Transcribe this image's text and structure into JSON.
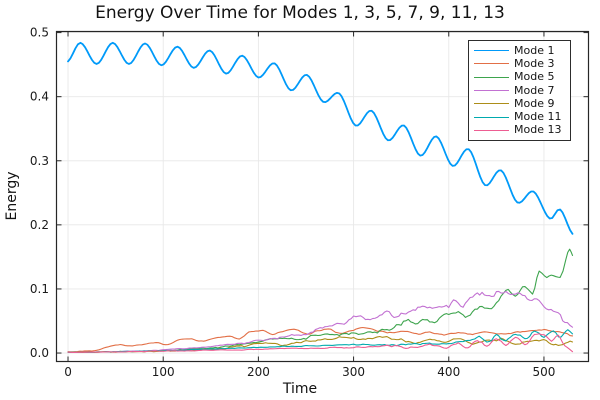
{
  "chart_data": {
    "type": "line",
    "title": "Energy Over Time for Modes 1, 3, 5, 7, 9, 11, 13",
    "xlabel": "Time",
    "ylabel": "Energy",
    "xlim": [
      -12.1,
      546.8
    ],
    "ylim": [
      -0.0132,
      0.5017
    ],
    "xticks": [
      0,
      100,
      200,
      300,
      400,
      500
    ],
    "yticks": [
      0.0,
      0.1,
      0.2,
      0.3,
      0.4,
      0.5
    ],
    "grid": true,
    "legend_position": "top-right",
    "frame_color": "#262626",
    "grid_color": "#e8e8e8",
    "tick_label_color": "#1a1a1a",
    "series": [
      {
        "name": "Mode 1",
        "color": "#009af9",
        "width": 1.8,
        "points": [
          [
            0,
            0.455
          ],
          [
            13,
            0.484
          ],
          [
            30,
            0.451
          ],
          [
            47,
            0.484
          ],
          [
            64,
            0.451
          ],
          [
            81,
            0.483
          ],
          [
            98,
            0.449
          ],
          [
            115,
            0.478
          ],
          [
            132,
            0.445
          ],
          [
            149,
            0.472
          ],
          [
            166,
            0.436
          ],
          [
            183,
            0.464
          ],
          [
            200,
            0.43
          ],
          [
            217,
            0.452
          ],
          [
            234,
            0.41
          ],
          [
            251,
            0.434
          ],
          [
            268,
            0.392
          ],
          [
            285,
            0.405
          ],
          [
            302,
            0.355
          ],
          [
            319,
            0.378
          ],
          [
            336,
            0.332
          ],
          [
            353,
            0.355
          ],
          [
            370,
            0.308
          ],
          [
            387,
            0.338
          ],
          [
            404,
            0.292
          ],
          [
            421,
            0.318
          ],
          [
            438,
            0.262
          ],
          [
            455,
            0.285
          ],
          [
            472,
            0.235
          ],
          [
            489,
            0.252
          ],
          [
            506,
            0.21
          ],
          [
            517,
            0.224
          ],
          [
            530,
            0.186
          ]
        ],
        "noise": []
      },
      {
        "name": "Mode 3",
        "color": "#e26f46",
        "width": 1.1,
        "points": [
          [
            0,
            0.002
          ],
          [
            15,
            0.003
          ],
          [
            30,
            0.004
          ],
          [
            40,
            0.009
          ],
          [
            55,
            0.013
          ],
          [
            65,
            0.011
          ],
          [
            80,
            0.014
          ],
          [
            95,
            0.016
          ],
          [
            105,
            0.013
          ],
          [
            115,
            0.02
          ],
          [
            130,
            0.022
          ],
          [
            140,
            0.018
          ],
          [
            155,
            0.024
          ],
          [
            170,
            0.026
          ],
          [
            180,
            0.022
          ],
          [
            190,
            0.032
          ],
          [
            205,
            0.035
          ],
          [
            215,
            0.029
          ],
          [
            228,
            0.035
          ],
          [
            242,
            0.036
          ],
          [
            252,
            0.029
          ],
          [
            262,
            0.035
          ],
          [
            276,
            0.037
          ],
          [
            286,
            0.03
          ],
          [
            300,
            0.036
          ],
          [
            312,
            0.039
          ],
          [
            325,
            0.035
          ],
          [
            338,
            0.032
          ],
          [
            352,
            0.034
          ],
          [
            366,
            0.03
          ],
          [
            380,
            0.032
          ],
          [
            395,
            0.029
          ],
          [
            410,
            0.031
          ],
          [
            425,
            0.03
          ],
          [
            440,
            0.033
          ],
          [
            455,
            0.029
          ],
          [
            470,
            0.032
          ],
          [
            485,
            0.035
          ],
          [
            500,
            0.036
          ],
          [
            512,
            0.033
          ],
          [
            522,
            0.032
          ],
          [
            530,
            0.027
          ]
        ],
        "noise": [
          [
            0,
            0.0005
          ],
          [
            200,
            0.0015
          ],
          [
            530,
            0.0015
          ]
        ]
      },
      {
        "name": "Mode 5",
        "color": "#3da44d",
        "width": 1.1,
        "points": [
          [
            0,
            0.001
          ],
          [
            50,
            0.002
          ],
          [
            100,
            0.004
          ],
          [
            150,
            0.008
          ],
          [
            175,
            0.012
          ],
          [
            200,
            0.017
          ],
          [
            220,
            0.023
          ],
          [
            240,
            0.021
          ],
          [
            260,
            0.027
          ],
          [
            280,
            0.029
          ],
          [
            300,
            0.031
          ],
          [
            320,
            0.033
          ],
          [
            340,
            0.038
          ],
          [
            355,
            0.05
          ],
          [
            365,
            0.045
          ],
          [
            375,
            0.054
          ],
          [
            385,
            0.048
          ],
          [
            395,
            0.059
          ],
          [
            410,
            0.064
          ],
          [
            420,
            0.057
          ],
          [
            430,
            0.071
          ],
          [
            440,
            0.067
          ],
          [
            450,
            0.079
          ],
          [
            460,
            0.098
          ],
          [
            470,
            0.089
          ],
          [
            480,
            0.106
          ],
          [
            488,
            0.092
          ],
          [
            495,
            0.128
          ],
          [
            503,
            0.116
          ],
          [
            510,
            0.124
          ],
          [
            517,
            0.119
          ],
          [
            523,
            0.147
          ],
          [
            527,
            0.164
          ],
          [
            530,
            0.154
          ]
        ],
        "noise": [
          [
            0,
            0.0005
          ],
          [
            200,
            0.002
          ],
          [
            350,
            0.004
          ],
          [
            530,
            0.005
          ]
        ]
      },
      {
        "name": "Mode 7",
        "color": "#c271d2",
        "width": 1.1,
        "points": [
          [
            0,
            0.001
          ],
          [
            50,
            0.002
          ],
          [
            100,
            0.005
          ],
          [
            150,
            0.01
          ],
          [
            175,
            0.014
          ],
          [
            200,
            0.019
          ],
          [
            225,
            0.025
          ],
          [
            250,
            0.031
          ],
          [
            270,
            0.039
          ],
          [
            290,
            0.047
          ],
          [
            305,
            0.057
          ],
          [
            320,
            0.054
          ],
          [
            335,
            0.062
          ],
          [
            350,
            0.058
          ],
          [
            365,
            0.068
          ],
          [
            380,
            0.072
          ],
          [
            395,
            0.07
          ],
          [
            405,
            0.08
          ],
          [
            415,
            0.075
          ],
          [
            425,
            0.088
          ],
          [
            435,
            0.094
          ],
          [
            445,
            0.087
          ],
          [
            455,
            0.098
          ],
          [
            465,
            0.092
          ],
          [
            475,
            0.096
          ],
          [
            485,
            0.085
          ],
          [
            495,
            0.081
          ],
          [
            505,
            0.069
          ],
          [
            515,
            0.061
          ],
          [
            522,
            0.049
          ],
          [
            530,
            0.044
          ]
        ],
        "noise": [
          [
            0,
            0.0005
          ],
          [
            150,
            0.001
          ],
          [
            250,
            0.003
          ],
          [
            320,
            0.006
          ],
          [
            420,
            0.007
          ],
          [
            530,
            0.006
          ]
        ]
      },
      {
        "name": "Mode 9",
        "color": "#ac8d18",
        "width": 1.1,
        "points": [
          [
            0,
            0.001
          ],
          [
            60,
            0.002
          ],
          [
            120,
            0.004
          ],
          [
            160,
            0.007
          ],
          [
            190,
            0.012
          ],
          [
            210,
            0.016
          ],
          [
            230,
            0.013
          ],
          [
            250,
            0.019
          ],
          [
            270,
            0.021
          ],
          [
            290,
            0.025
          ],
          [
            310,
            0.021
          ],
          [
            330,
            0.025
          ],
          [
            350,
            0.021
          ],
          [
            365,
            0.015
          ],
          [
            380,
            0.021
          ],
          [
            395,
            0.017
          ],
          [
            410,
            0.023
          ],
          [
            425,
            0.015
          ],
          [
            440,
            0.019
          ],
          [
            455,
            0.021
          ],
          [
            470,
            0.015
          ],
          [
            485,
            0.019
          ],
          [
            500,
            0.02
          ],
          [
            510,
            0.012
          ],
          [
            520,
            0.013
          ],
          [
            530,
            0.019
          ]
        ],
        "noise": [
          [
            0,
            0.0005
          ],
          [
            180,
            0.002
          ],
          [
            530,
            0.003
          ]
        ]
      },
      {
        "name": "Mode 11",
        "color": "#00aaae",
        "width": 1.1,
        "points": [
          [
            0,
            0.001
          ],
          [
            80,
            0.003
          ],
          [
            150,
            0.006
          ],
          [
            200,
            0.009
          ],
          [
            250,
            0.011
          ],
          [
            300,
            0.013
          ],
          [
            350,
            0.013
          ],
          [
            400,
            0.015
          ],
          [
            420,
            0.019
          ],
          [
            432,
            0.025
          ],
          [
            440,
            0.017
          ],
          [
            450,
            0.027
          ],
          [
            460,
            0.019
          ],
          [
            470,
            0.029
          ],
          [
            480,
            0.023
          ],
          [
            490,
            0.033
          ],
          [
            500,
            0.027
          ],
          [
            510,
            0.033
          ],
          [
            518,
            0.025
          ],
          [
            525,
            0.035
          ],
          [
            530,
            0.029
          ]
        ],
        "noise": [
          [
            0,
            0.0003
          ],
          [
            300,
            0.001
          ],
          [
            420,
            0.003
          ],
          [
            530,
            0.003
          ]
        ]
      },
      {
        "name": "Mode 13",
        "color": "#ed5d92",
        "width": 1.1,
        "points": [
          [
            0,
            0.001
          ],
          [
            100,
            0.003
          ],
          [
            180,
            0.005
          ],
          [
            240,
            0.007
          ],
          [
            300,
            0.009
          ],
          [
            340,
            0.011
          ],
          [
            360,
            0.008
          ],
          [
            380,
            0.013
          ],
          [
            395,
            0.008
          ],
          [
            410,
            0.015
          ],
          [
            420,
            0.009
          ],
          [
            430,
            0.019
          ],
          [
            440,
            0.011
          ],
          [
            450,
            0.021
          ],
          [
            460,
            0.013
          ],
          [
            470,
            0.023
          ],
          [
            480,
            0.014
          ],
          [
            490,
            0.027
          ],
          [
            500,
            0.029
          ],
          [
            508,
            0.021
          ],
          [
            515,
            0.027
          ],
          [
            522,
            0.011
          ],
          [
            530,
            0.004
          ]
        ],
        "noise": [
          [
            0,
            0.0004
          ],
          [
            300,
            0.0015
          ],
          [
            400,
            0.003
          ],
          [
            530,
            0.003
          ]
        ]
      }
    ]
  }
}
